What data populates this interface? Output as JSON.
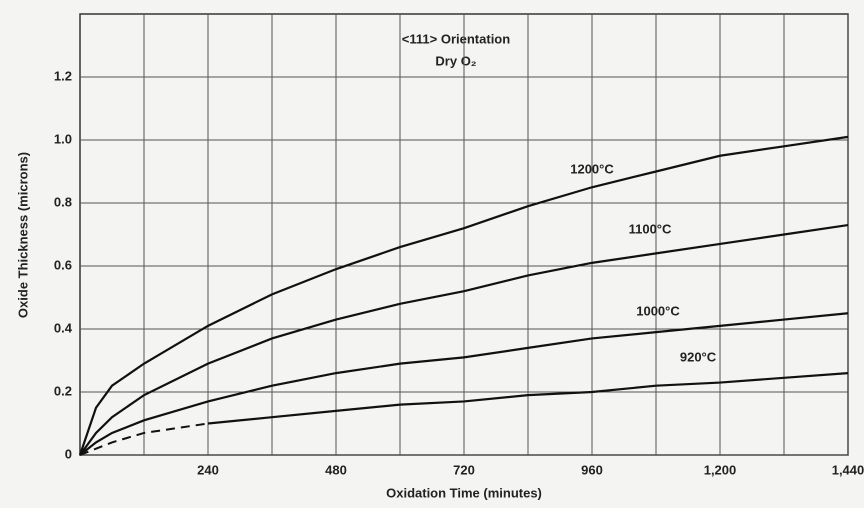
{
  "chart_data": {
    "type": "line",
    "annotations": [
      "<111> Orientation",
      "Dry O₂"
    ],
    "x_label": "Oxidation Time (minutes)",
    "y_label": "Oxide Thickness (microns)",
    "x": [
      0,
      30,
      60,
      120,
      240,
      360,
      480,
      600,
      720,
      840,
      960,
      1080,
      1200,
      1320,
      1440
    ],
    "series": [
      {
        "name": "1200°C",
        "color": "#111111",
        "values": [
          0,
          0.15,
          0.22,
          0.29,
          0.41,
          0.51,
          0.59,
          0.66,
          0.72,
          0.79,
          0.85,
          0.9,
          0.95,
          0.98,
          1.01
        ]
      },
      {
        "name": "1100°C",
        "color": "#111111",
        "values": [
          0,
          0.07,
          0.12,
          0.19,
          0.29,
          0.37,
          0.43,
          0.48,
          0.52,
          0.57,
          0.61,
          0.64,
          0.67,
          0.7,
          0.73
        ]
      },
      {
        "name": "1000°C",
        "color": "#111111",
        "values": [
          0,
          0.04,
          0.07,
          0.11,
          0.17,
          0.22,
          0.26,
          0.29,
          0.31,
          0.34,
          0.37,
          0.39,
          0.41,
          0.43,
          0.45
        ]
      },
      {
        "name": "920°C",
        "color": "#111111",
        "dashed_to": 240,
        "values": [
          0,
          0.02,
          0.04,
          0.07,
          0.1,
          0.12,
          0.14,
          0.16,
          0.17,
          0.19,
          0.2,
          0.22,
          0.23,
          0.245,
          0.26
        ]
      }
    ],
    "xlim": [
      0,
      1440
    ],
    "xticks": [
      240,
      480,
      720,
      960,
      {
        "value": 1200,
        "label": "1,200"
      },
      {
        "value": 1440,
        "label": "1,440"
      }
    ],
    "xgrid": [
      120,
      360,
      600,
      840,
      1080,
      1320
    ],
    "ylim": [
      0,
      1.4
    ],
    "yticks": [
      0,
      0.2,
      0.4,
      0.6,
      0.8,
      {
        "value": 1,
        "label": "1.0"
      },
      1.2
    ],
    "grid": true
  }
}
